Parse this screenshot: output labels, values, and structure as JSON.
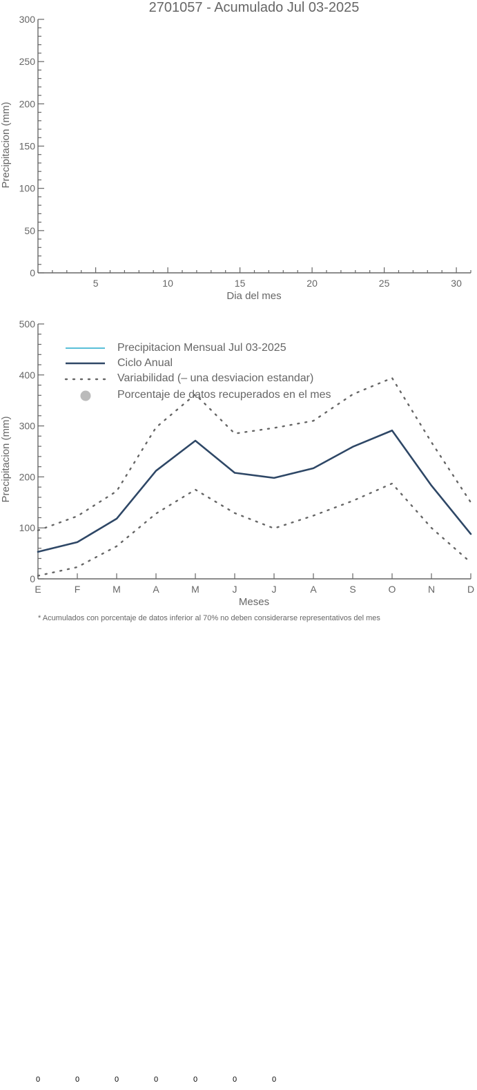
{
  "chart_data": [
    {
      "type": "line",
      "title": "2701057 - Acumulado Jul 03-2025",
      "xlabel": "Dia del mes",
      "ylabel": "Precipitacion (mm)",
      "xlim": [
        1,
        31
      ],
      "ylim": [
        0,
        300
      ],
      "xticks": [
        5,
        10,
        15,
        20,
        25,
        30
      ],
      "yticks": [
        0,
        50,
        100,
        150,
        200,
        250,
        300
      ],
      "series": []
    },
    {
      "type": "line",
      "xlabel": "Meses",
      "ylabel": "Precipitacion (mm)",
      "categories": [
        "E",
        "F",
        "M",
        "A",
        "M",
        "J",
        "J",
        "A",
        "S",
        "O",
        "N",
        "D"
      ],
      "ylim": [
        0,
        500
      ],
      "yticks": [
        0,
        100,
        200,
        300,
        400,
        500
      ],
      "legend_position": "top-left",
      "legend": [
        "Precipitacion Mensual Jul 03-2025",
        "Ciclo Anual",
        "Variabilidad (– una desviacion estandar)",
        "Porcentaje de datos recuperados en el mes"
      ],
      "series": [
        {
          "name": "Ciclo Anual",
          "color": "#2e4766",
          "values": [
            53,
            72,
            118,
            212,
            271,
            208,
            198,
            217,
            259,
            291,
            183,
            88
          ]
        },
        {
          "name": "Variabilidad upper",
          "color": "#666666",
          "values": [
            95,
            123,
            172,
            297,
            362,
            285,
            296,
            310,
            362,
            394,
            268,
            150
          ]
        },
        {
          "name": "Variabilidad lower",
          "color": "#666666",
          "values": [
            6,
            23,
            64,
            128,
            175,
            129,
            99,
            124,
            153,
            187,
            100,
            32
          ]
        }
      ],
      "monthly_color": "#22aacc",
      "percent_marker_color": "#bbbbbb",
      "note": "* Acumulados con porcentaje de datos inferior al 70% no deben considerarse representativos del mes",
      "bottom_values": [
        "0",
        "0",
        "0",
        "0",
        "0",
        "0",
        "0"
      ]
    }
  ]
}
